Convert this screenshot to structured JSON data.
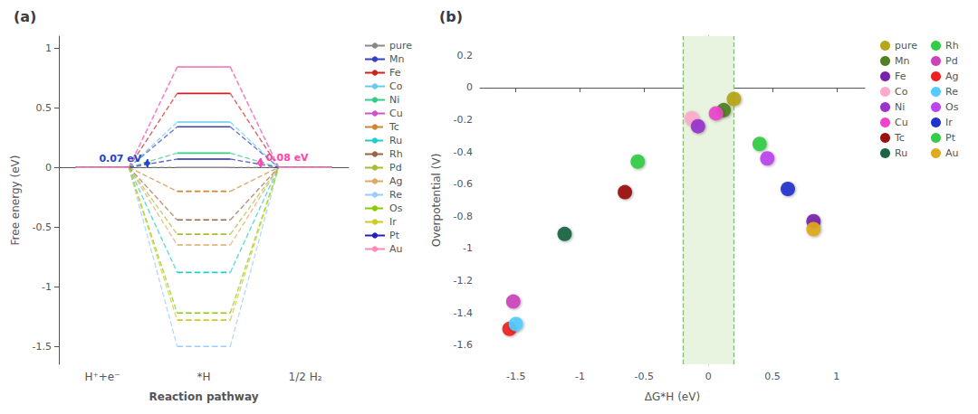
{
  "chart_data": [
    {
      "type": "energy_diagram",
      "title": "(a)",
      "xlabel": "Reaction pathway",
      "ylabel": "Free energy (eV)",
      "categories": [
        "H⁺+e⁻",
        "*H",
        "1/2 H₂"
      ],
      "series": [
        {
          "name": "pure",
          "color": "#888888",
          "line_style": "solid",
          "values": [
            0,
            0.0,
            0
          ]
        },
        {
          "name": "Mn",
          "color": "#3344bb",
          "line_style": "solid",
          "values": [
            0,
            0.34,
            0
          ]
        },
        {
          "name": "Fe",
          "color": "#cc2222",
          "line_style": "solid",
          "values": [
            0,
            0.62,
            0
          ]
        },
        {
          "name": "Co",
          "color": "#66ccee",
          "line_style": "solid",
          "values": [
            0,
            0.38,
            0
          ]
        },
        {
          "name": "Ni",
          "color": "#33cc88",
          "line_style": "solid",
          "values": [
            0,
            0.12,
            0
          ]
        },
        {
          "name": "Cu",
          "color": "#cc55cc",
          "line_style": "solid",
          "values": [
            0,
            0.84,
            0
          ]
        },
        {
          "name": "Tc",
          "color": "#cc8833",
          "line_style": "dashed",
          "values": [
            0,
            -0.2,
            0
          ]
        },
        {
          "name": "Ru",
          "color": "#22cccc",
          "line_style": "dashed",
          "values": [
            0,
            -0.88,
            0
          ]
        },
        {
          "name": "Rh",
          "color": "#996644",
          "line_style": "dashed",
          "values": [
            0,
            -0.44,
            0
          ]
        },
        {
          "name": "Pd",
          "color": "#aabb33",
          "line_style": "dashed",
          "values": [
            0,
            -0.56,
            0
          ]
        },
        {
          "name": "Ag",
          "color": "#ddaa66",
          "line_style": "dashed",
          "values": [
            0,
            -0.65,
            0
          ]
        },
        {
          "name": "Re",
          "color": "#99ccff",
          "line_style": "dashed",
          "values": [
            0,
            -1.5,
            0
          ]
        },
        {
          "name": "Os",
          "color": "#88cc00",
          "line_style": "dashed",
          "values": [
            0,
            -1.22,
            0
          ]
        },
        {
          "name": "Ir",
          "color": "#cccc22",
          "line_style": "dashed",
          "values": [
            0,
            -1.28,
            0
          ]
        },
        {
          "name": "Pt",
          "color": "#2222bb",
          "line_style": "solid",
          "values": [
            0,
            0.07,
            0
          ]
        },
        {
          "name": "Au",
          "color": "#ff88bb",
          "line_style": "solid",
          "values": [
            0,
            0.84,
            0
          ]
        }
      ],
      "annotations": [
        {
          "text": "0.07 eV",
          "y": [
            0,
            0.07
          ],
          "color": "#2244cc"
        },
        {
          "text": "0.08 eV",
          "y": [
            0,
            0.08
          ],
          "color": "#ff44aa"
        }
      ],
      "ylim": [
        -1.65,
        1.1
      ],
      "yticks": [
        -1.5,
        -1.0,
        -0.5,
        0,
        0.5,
        1.0
      ],
      "grid": false,
      "legend": "right"
    },
    {
      "type": "scatter",
      "title": "(b)",
      "xlabel": "ΔG*H (eV)",
      "ylabel": "Overpotential (V)",
      "marker": "circle",
      "series": [
        {
          "name": "pure",
          "color": "#b8a518",
          "x": [
            0.2
          ],
          "values": [
            -0.07
          ]
        },
        {
          "name": "Mn",
          "color": "#508020",
          "x": [
            0.12
          ],
          "values": [
            -0.14
          ]
        },
        {
          "name": "Fe",
          "color": "#7722aa",
          "x": [
            0.82
          ],
          "values": [
            -0.83
          ]
        },
        {
          "name": "Co",
          "color": "#ffaacc",
          "x": [
            -0.13
          ],
          "values": [
            -0.19
          ]
        },
        {
          "name": "Ni",
          "color": "#9933cc",
          "x": [
            -0.08
          ],
          "values": [
            -0.24
          ]
        },
        {
          "name": "Cu",
          "color": "#ee44cc",
          "x": [
            0.06
          ],
          "values": [
            -0.16
          ]
        },
        {
          "name": "Tc",
          "color": "#991111",
          "x": [
            -0.65
          ],
          "values": [
            -0.65
          ]
        },
        {
          "name": "Ru",
          "color": "#1a6644",
          "x": [
            -1.12
          ],
          "values": [
            -0.91
          ]
        },
        {
          "name": "Rh",
          "color": "#33cc44",
          "x": [
            -0.55
          ],
          "values": [
            -0.46
          ]
        },
        {
          "name": "Pd",
          "color": "#cc44bb",
          "x": [
            -1.52
          ],
          "values": [
            -1.33
          ]
        },
        {
          "name": "Ag",
          "color": "#ee2222",
          "x": [
            -1.55
          ],
          "values": [
            -1.5
          ]
        },
        {
          "name": "Re",
          "color": "#55ccff",
          "x": [
            -1.5
          ],
          "values": [
            -1.47
          ]
        },
        {
          "name": "Os",
          "color": "#bb44ee",
          "x": [
            0.46
          ],
          "values": [
            -0.44
          ]
        },
        {
          "name": "Ir",
          "color": "#2233cc",
          "x": [
            0.62
          ],
          "values": [
            -0.63
          ]
        },
        {
          "name": "Pt",
          "color": "#33cc44",
          "x": [
            0.4
          ],
          "values": [
            -0.35
          ]
        },
        {
          "name": "Au",
          "color": "#ddaa20",
          "x": [
            0.82
          ],
          "values": [
            -0.88
          ]
        }
      ],
      "band": {
        "x": [
          -0.2,
          0.2
        ],
        "color": "#e8f4e0"
      },
      "xlim": [
        -1.78,
        1.22
      ],
      "ylim": [
        -1.72,
        0.32
      ],
      "xticks": [
        -1.5,
        -1.0,
        -0.5,
        0.0,
        0.5,
        1.0
      ],
      "yticks": [
        0.2,
        0.0,
        -0.2,
        -0.4,
        -0.6,
        -0.8,
        -1.0,
        -1.2,
        -1.4,
        -1.6
      ],
      "grid": false,
      "legend": "right"
    }
  ]
}
